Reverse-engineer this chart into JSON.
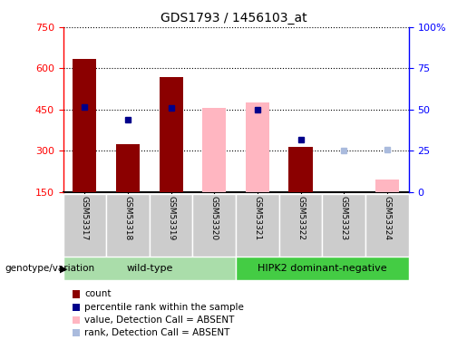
{
  "title": "GDS1793 / 1456103_at",
  "samples": [
    "GSM53317",
    "GSM53318",
    "GSM53319",
    "GSM53320",
    "GSM53321",
    "GSM53322",
    "GSM53323",
    "GSM53324"
  ],
  "count_values": [
    635,
    325,
    570,
    null,
    null,
    315,
    null,
    null
  ],
  "percentile_values": [
    460,
    415,
    455,
    null,
    450,
    340,
    null,
    null
  ],
  "absent_value_values": [
    null,
    null,
    null,
    455,
    475,
    null,
    null,
    195
  ],
  "absent_rank_values": [
    null,
    null,
    null,
    null,
    null,
    null,
    300,
    305
  ],
  "ylim_left": [
    150,
    750
  ],
  "ylim_right": [
    0,
    100
  ],
  "left_ticks": [
    150,
    300,
    450,
    600,
    750
  ],
  "right_ticks": [
    0,
    25,
    50,
    75,
    100
  ],
  "right_tick_labels": [
    "0",
    "25",
    "50",
    "75",
    "100%"
  ],
  "color_count": "#8B0000",
  "color_percentile": "#00008B",
  "color_absent_value": "#FFB6C1",
  "color_absent_rank": "#AABBDD",
  "group1_label": "wild-type",
  "group1_color": "#AADDAA",
  "group2_label": "HIPK2 dominant-negative",
  "group2_color": "#44CC44",
  "bar_width": 0.55,
  "rank_marker_size": 5,
  "legend_items": [
    {
      "label": "count",
      "color": "#8B0000"
    },
    {
      "label": "percentile rank within the sample",
      "color": "#00008B"
    },
    {
      "label": "value, Detection Call = ABSENT",
      "color": "#FFB6C1"
    },
    {
      "label": "rank, Detection Call = ABSENT",
      "color": "#AABBDD"
    }
  ]
}
